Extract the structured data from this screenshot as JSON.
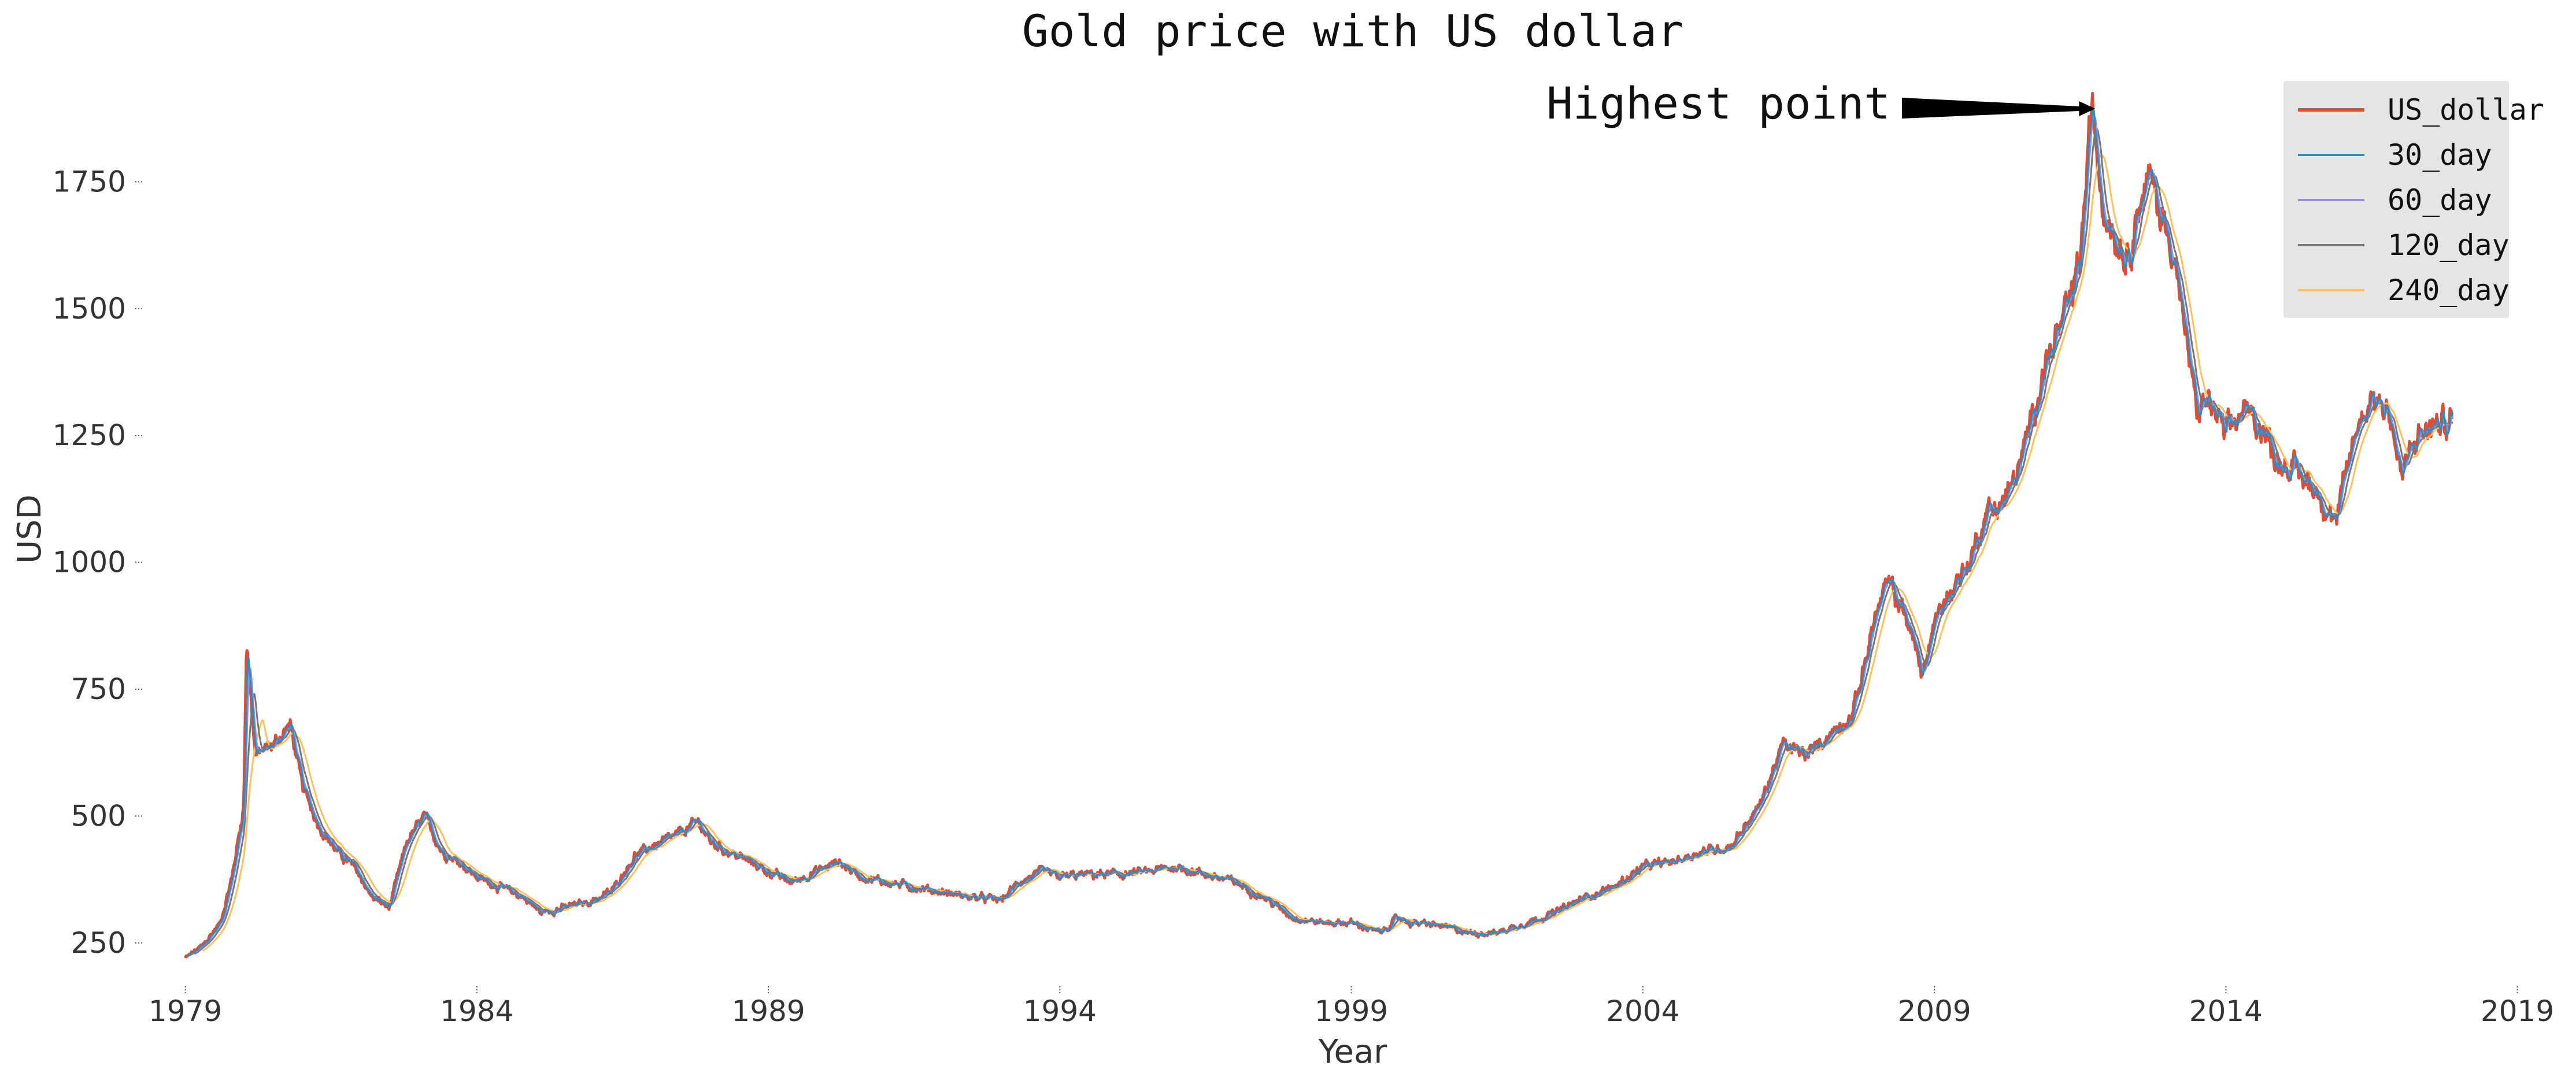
{
  "chart_data": {
    "type": "line",
    "title": "Gold price with US dollar",
    "xlabel": "Year",
    "ylabel": "USD",
    "xlim": [
      1978.3,
      2019.5
    ],
    "ylim": [
      160,
      1960
    ],
    "x_ticks": [
      1979,
      1984,
      1989,
      1994,
      1999,
      2004,
      2009,
      2014,
      2019
    ],
    "y_ticks": [
      250,
      500,
      750,
      1000,
      1250,
      1500,
      1750
    ],
    "x_tick_labels": [
      "1979",
      "1984",
      "1989",
      "1994",
      "1999",
      "2004",
      "2009",
      "2014",
      "2019"
    ],
    "y_tick_labels": [
      "250",
      "500",
      "750",
      "1000",
      "1250",
      "1500",
      "1750"
    ],
    "grid": false,
    "legend_position": "top-right",
    "annotation": {
      "text": "Highest point",
      "x": 2011.7,
      "y": 1895
    },
    "colors": {
      "US_dollar": "#e24a33",
      "30_day": "#348abd",
      "60_day": "#988ed5",
      "120_day": "#777777",
      "240_day": "#fbc15e"
    },
    "series_keypoints": {
      "name": "US_dollar",
      "x": [
        1979.0,
        1979.3,
        1979.6,
        1979.8,
        1980.0,
        1980.05,
        1980.2,
        1980.5,
        1980.8,
        1981.0,
        1981.3,
        1981.6,
        1981.9,
        1982.2,
        1982.5,
        1982.8,
        1983.1,
        1983.4,
        1983.7,
        1984.0,
        1984.4,
        1984.8,
        1985.1,
        1985.5,
        1985.9,
        1986.3,
        1986.7,
        1987.0,
        1987.4,
        1987.8,
        1988.0,
        1988.3,
        1988.7,
        1989.0,
        1989.4,
        1989.8,
        1990.2,
        1990.6,
        1991.0,
        1991.5,
        1992.0,
        1992.5,
        1993.0,
        1993.3,
        1993.7,
        1994.0,
        1994.5,
        1995.0,
        1995.5,
        1996.0,
        1996.5,
        1997.0,
        1997.5,
        1998.0,
        1998.5,
        1999.0,
        1999.5,
        1999.8,
        2000.0,
        2000.5,
        2001.0,
        2001.5,
        2002.0,
        2002.5,
        2003.0,
        2003.5,
        2004.0,
        2004.5,
        2005.0,
        2005.5,
        2006.0,
        2006.4,
        2006.8,
        2007.2,
        2007.6,
        2008.0,
        2008.2,
        2008.5,
        2008.8,
        2009.0,
        2009.3,
        2009.6,
        2009.9,
        2010.2,
        2010.5,
        2010.8,
        2011.0,
        2011.3,
        2011.5,
        2011.7,
        2011.9,
        2012.1,
        2012.3,
        2012.5,
        2012.7,
        2012.9,
        2013.1,
        2013.3,
        2013.5,
        2013.7,
        2014.0,
        2014.3,
        2014.6,
        2014.9,
        2015.2,
        2015.5,
        2015.9,
        2016.2,
        2016.5,
        2016.8,
        2017.0,
        2017.3,
        2017.6,
        2017.9
      ],
      "y": [
        220,
        245,
        290,
        380,
        520,
        850,
        620,
        640,
        680,
        560,
        480,
        430,
        400,
        340,
        320,
        450,
        500,
        430,
        410,
        380,
        360,
        340,
        310,
        320,
        330,
        350,
        420,
        440,
        460,
        490,
        450,
        430,
        410,
        390,
        370,
        390,
        410,
        380,
        370,
        360,
        350,
        340,
        335,
        370,
        390,
        380,
        385,
        385,
        390,
        400,
        385,
        370,
        340,
        300,
        290,
        290,
        270,
        300,
        290,
        285,
        270,
        270,
        290,
        310,
        340,
        360,
        400,
        410,
        430,
        440,
        520,
        640,
        620,
        660,
        700,
        900,
        960,
        900,
        780,
        880,
        950,
        1000,
        1100,
        1120,
        1200,
        1350,
        1420,
        1500,
        1600,
        1895,
        1700,
        1650,
        1600,
        1700,
        1760,
        1680,
        1620,
        1450,
        1300,
        1320,
        1250,
        1300,
        1270,
        1200,
        1180,
        1150,
        1080,
        1250,
        1330,
        1300,
        1170,
        1250,
        1270,
        1280
      ]
    }
  },
  "legend": {
    "entries": [
      "US_dollar",
      "30_day",
      "60_day",
      "120_day",
      "240_day"
    ]
  }
}
